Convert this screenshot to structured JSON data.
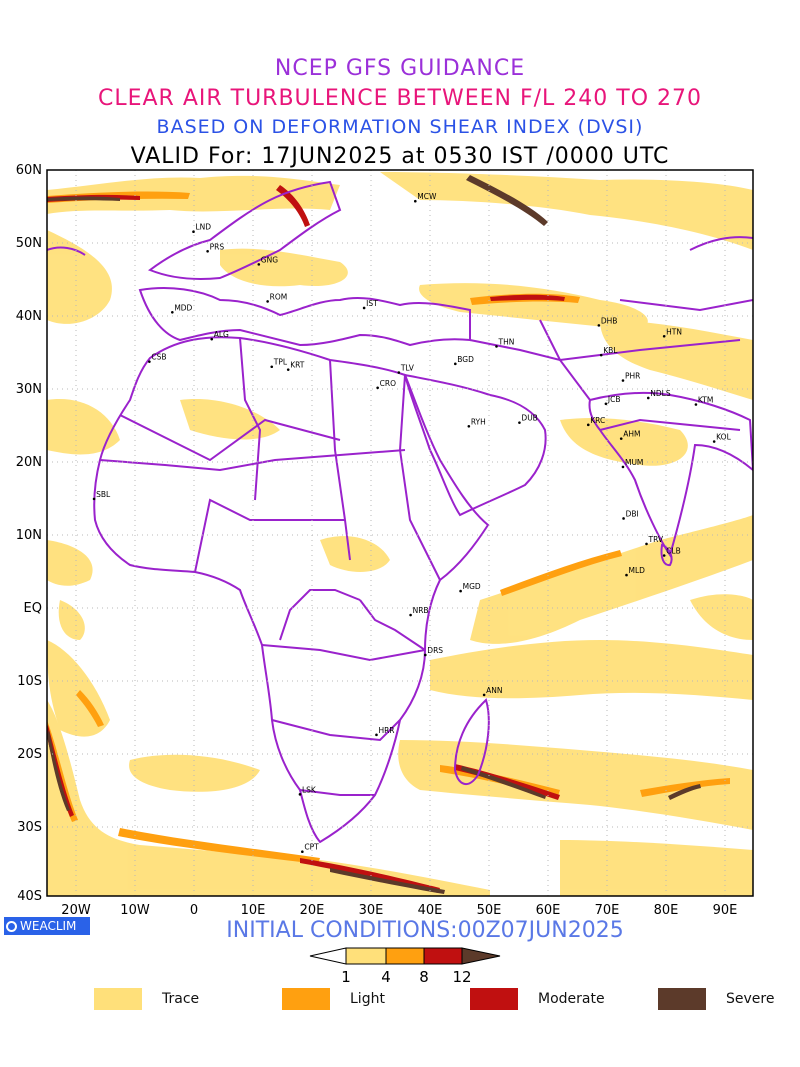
{
  "title": {
    "line1": "NCEP GFS GUIDANCE",
    "line2": "CLEAR AIR TURBULENCE BETWEEN F/L 240 TO 270",
    "line3": "BASED ON DEFORMATION SHEAR INDEX (DVSI)",
    "line4": "VALID For: 17JUN2025 at 0530 IST /0000 UTC"
  },
  "lat_labels": [
    "60N",
    "50N",
    "40N",
    "30N",
    "20N",
    "10N",
    "EQ",
    "10S",
    "20S",
    "30S",
    "40S"
  ],
  "lon_labels": [
    "20W",
    "10W",
    "0",
    "10E",
    "20E",
    "30E",
    "40E",
    "50E",
    "60E",
    "70E",
    "80E",
    "90E"
  ],
  "stations": [
    {
      "code": "MCW",
      "lon": 37.6,
      "lat": 55.7
    },
    {
      "code": "LND",
      "lon": -0.1,
      "lat": 51.5
    },
    {
      "code": "PRS",
      "lon": 2.3,
      "lat": 48.8
    },
    {
      "code": "GNG",
      "lon": 11,
      "lat": 47
    },
    {
      "code": "MDD",
      "lon": -3.7,
      "lat": 40.4
    },
    {
      "code": "ROM",
      "lon": 12.5,
      "lat": 41.9
    },
    {
      "code": "IST",
      "lon": 28.9,
      "lat": 41.0
    },
    {
      "code": "ALG",
      "lon": 3.0,
      "lat": 36.7
    },
    {
      "code": "CSB",
      "lon": -7.6,
      "lat": 33.6
    },
    {
      "code": "TPL",
      "lon": 13.2,
      "lat": 32.9
    },
    {
      "code": "KRT",
      "lon": 16,
      "lat": 32.5
    },
    {
      "code": "CRO",
      "lon": 31.2,
      "lat": 30.0
    },
    {
      "code": "TLV",
      "lon": 34.8,
      "lat": 32.1
    },
    {
      "code": "BGD",
      "lon": 44.4,
      "lat": 33.3
    },
    {
      "code": "THN",
      "lon": 51.4,
      "lat": 35.7
    },
    {
      "code": "RYH",
      "lon": 46.7,
      "lat": 24.7
    },
    {
      "code": "DUB",
      "lon": 55.3,
      "lat": 25.2
    },
    {
      "code": "DHB",
      "lon": 68.8,
      "lat": 38.6
    },
    {
      "code": "KBL",
      "lon": 69.2,
      "lat": 34.5
    },
    {
      "code": "HTN",
      "lon": 79.9,
      "lat": 37.1
    },
    {
      "code": "PHR",
      "lon": 72.9,
      "lat": 31
    },
    {
      "code": "NDLS",
      "lon": 77.2,
      "lat": 28.6
    },
    {
      "code": "JCB",
      "lon": 70,
      "lat": 27.8
    },
    {
      "code": "KTM",
      "lon": 85.3,
      "lat": 27.7
    },
    {
      "code": "KRC",
      "lon": 67.0,
      "lat": 24.9
    },
    {
      "code": "AHM",
      "lon": 72.6,
      "lat": 23.0
    },
    {
      "code": "KOL",
      "lon": 88.4,
      "lat": 22.6
    },
    {
      "code": "MUM",
      "lon": 72.9,
      "lat": 19.1
    },
    {
      "code": "DBI",
      "lon": 73,
      "lat": 12
    },
    {
      "code": "TRV",
      "lon": 76.9,
      "lat": 8.5
    },
    {
      "code": "CLB",
      "lon": 79.9,
      "lat": 6.9
    },
    {
      "code": "MLD",
      "lon": 73.5,
      "lat": 4.2
    },
    {
      "code": "SBL",
      "lon": -17,
      "lat": 14.7
    },
    {
      "code": "MGD",
      "lon": 45.3,
      "lat": 2.0
    },
    {
      "code": "NRB",
      "lon": 36.8,
      "lat": -1.3
    },
    {
      "code": "DRS",
      "lon": 39.3,
      "lat": -6.8
    },
    {
      "code": "ANN",
      "lon": 49.3,
      "lat": -12.3
    },
    {
      "code": "HRR",
      "lon": 31.0,
      "lat": -17.8
    },
    {
      "code": "LSK",
      "lon": 18,
      "lat": -26
    },
    {
      "code": "CPT",
      "lon": 18.4,
      "lat": -33.9
    }
  ],
  "footer": {
    "logo": "WEACLIM",
    "initial_conditions": "INITIAL CONDITIONS:00Z07JUN2025"
  },
  "colorbar": {
    "ticks": [
      "1",
      "4",
      "8",
      "12"
    ],
    "colors": [
      "#ffe07a",
      "#ffa010",
      "#c01010",
      "#5c3a2a"
    ]
  },
  "legend": [
    {
      "label": "Trace",
      "color": "#ffe07a"
    },
    {
      "label": "Light",
      "color": "#ffa010"
    },
    {
      "label": "Moderate",
      "color": "#c01010"
    },
    {
      "label": "Severe",
      "color": "#5c3a2a"
    }
  ]
}
